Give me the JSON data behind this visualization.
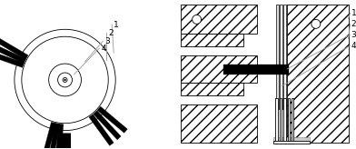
{
  "bg_color": "#ffffff",
  "line_color": "#000000",
  "gray_color": "#999999",
  "fig_width": 3.92,
  "fig_height": 1.64,
  "dpi": 100
}
